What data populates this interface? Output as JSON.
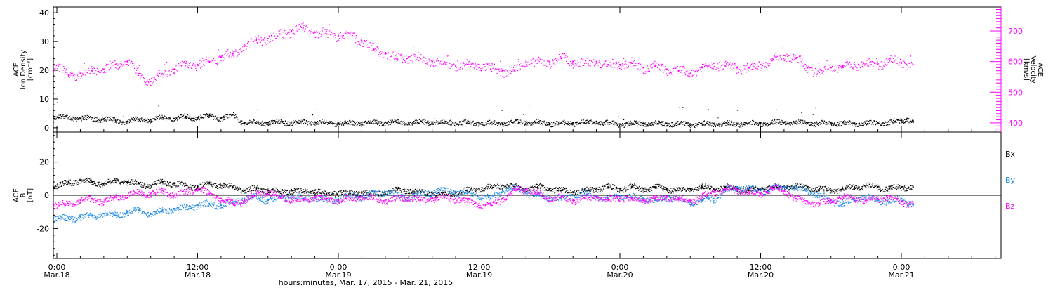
{
  "colors": {
    "density": "#000000",
    "velocity": "#ff00ff",
    "bx": "#000000",
    "by": "#1e88e5",
    "bz": "#ff00ff"
  },
  "x_axis": {
    "title": "hours:minutes, Mar. 17, 2015 - Mar. 21, 2015",
    "ticks": [
      {
        "time": "0:00",
        "date": "Mar.18",
        "hour": 0
      },
      {
        "time": "12:00",
        "date": "Mar.18",
        "hour": 12
      },
      {
        "time": "0:00",
        "date": "Mar.19",
        "hour": 24
      },
      {
        "time": "12:00",
        "date": "Mar.19",
        "hour": 36
      },
      {
        "time": "0:00",
        "date": "Mar.20",
        "hour": 48
      },
      {
        "time": "12:00",
        "date": "Mar.20",
        "hour": 60
      },
      {
        "time": "0:00",
        "date": "Mar.21",
        "hour": 72
      }
    ],
    "range_hours": [
      -0.3,
      80.5
    ]
  },
  "chart_data": [
    {
      "type": "scatter",
      "panel": "top",
      "left_axis": {
        "label_lines": [
          "ACE",
          "Ion Density",
          "[cm⁻³]"
        ],
        "ticks": [
          "0",
          "10",
          "20",
          "30",
          "40"
        ],
        "tick_values": [
          0,
          10,
          20,
          30,
          40
        ],
        "range": [
          -1.5,
          42
        ]
      },
      "right_axis": {
        "label_lines": [
          "ACE",
          "Velocity",
          "[km/s]"
        ],
        "ticks": [
          "400",
          "500",
          "600",
          "700"
        ],
        "tick_values": [
          400,
          500,
          600,
          700
        ],
        "range": [
          370,
          778
        ]
      },
      "series": [
        {
          "key": "density",
          "axis": "left",
          "x": [
            -0.3,
            2,
            4,
            5,
            6,
            7,
            8,
            9,
            10,
            11,
            12,
            13,
            14,
            15,
            15.7,
            16,
            18,
            20,
            22,
            24,
            26,
            28,
            30,
            32,
            34,
            36,
            38,
            40,
            42,
            44,
            46,
            48,
            50,
            52,
            54,
            56,
            58,
            60,
            62,
            64,
            66,
            68,
            70,
            71.5,
            72,
            72.5,
            73
          ],
          "values": [
            4,
            3.3,
            3.1,
            2.6,
            2.2,
            3,
            2.8,
            3.6,
            3.2,
            3.9,
            3.6,
            4.2,
            3.3,
            4.5,
            2.3,
            1.8,
            1.9,
            2,
            2,
            1.6,
            1.8,
            1.9,
            1.8,
            2,
            1.9,
            1.7,
            1.6,
            2.1,
            1.6,
            1.7,
            2.1,
            1.3,
            1.6,
            1.5,
            1.3,
            1.5,
            1.4,
            1.6,
            1.9,
            1.6,
            1.7,
            1.6,
            1.8,
            2.1,
            2.5,
            3.2,
            2.4
          ]
        },
        {
          "key": "velocity",
          "axis": "right",
          "x": [
            -0.3,
            1,
            2,
            3,
            4,
            5,
            6,
            7,
            8,
            9,
            10,
            11,
            12,
            13,
            14,
            15,
            16,
            17,
            18,
            19,
            20,
            21,
            22,
            23,
            24,
            25,
            26,
            27,
            28,
            29,
            30,
            31,
            32,
            33,
            34,
            35,
            36,
            37,
            38,
            39,
            40,
            41,
            42,
            43,
            44,
            45,
            46,
            47,
            48,
            49,
            50,
            51,
            52,
            53,
            54,
            55,
            56,
            57,
            58,
            59,
            60,
            61,
            62,
            63,
            64,
            65,
            66,
            67,
            68,
            69,
            70,
            71,
            72,
            73
          ],
          "values": [
            590,
            555,
            560,
            570,
            575,
            590,
            600,
            560,
            535,
            560,
            575,
            595,
            590,
            600,
            615,
            625,
            650,
            670,
            675,
            690,
            700,
            710,
            695,
            690,
            685,
            690,
            665,
            640,
            625,
            610,
            615,
            610,
            600,
            595,
            585,
            590,
            590,
            575,
            570,
            570,
            600,
            595,
            600,
            610,
            600,
            595,
            600,
            590,
            590,
            595,
            580,
            585,
            575,
            570,
            560,
            580,
            595,
            585,
            580,
            580,
            590,
            605,
            620,
            610,
            580,
            565,
            580,
            585,
            590,
            595,
            590,
            610,
            595,
            590
          ]
        }
      ]
    },
    {
      "type": "scatter",
      "panel": "bottom",
      "left_axis": {
        "label_lines": [
          "ACE",
          "B",
          "[nT]"
        ],
        "ticks": [
          "-20",
          "0",
          "20"
        ],
        "tick_values": [
          -20,
          0,
          20
        ],
        "range": [
          -38,
          38
        ]
      },
      "legend": [
        "Bx",
        "By",
        "Bz"
      ],
      "series": [
        {
          "key": "bx",
          "name": "Bx",
          "x": [
            -0.3,
            1,
            2,
            3,
            4,
            5,
            6,
            7,
            8,
            9,
            10,
            11,
            12,
            13,
            14,
            15,
            16,
            17,
            18,
            19,
            20,
            21,
            22,
            23,
            24,
            25,
            26,
            27,
            28,
            29,
            30,
            31,
            32,
            33,
            34,
            35,
            36,
            37,
            38,
            39,
            40,
            41,
            42,
            43,
            44,
            45,
            46,
            47,
            48,
            49,
            50,
            51,
            52,
            53,
            54,
            55,
            56,
            57,
            58,
            59,
            60,
            61,
            62,
            63,
            64,
            65,
            66,
            67,
            68,
            69,
            70,
            71,
            72,
            73
          ],
          "values": [
            5,
            8,
            9,
            8,
            7,
            9,
            8,
            7,
            6,
            8,
            7,
            6,
            5,
            7,
            6,
            5,
            3,
            4,
            3,
            2,
            3,
            2,
            3,
            1,
            2,
            1,
            2,
            1,
            2,
            3,
            3,
            2,
            1,
            0,
            2,
            3,
            4,
            5,
            6,
            5,
            4,
            5,
            4,
            3,
            2,
            3,
            4,
            5,
            4,
            5,
            4,
            5,
            4,
            3,
            4,
            5,
            4,
            5,
            4,
            3,
            4,
            5,
            5,
            6,
            5,
            4,
            3,
            4,
            5,
            6,
            5,
            4,
            5,
            5
          ]
        },
        {
          "key": "by",
          "name": "By",
          "x": [
            -0.3,
            1,
            2,
            3,
            4,
            5,
            6,
            7,
            8,
            9,
            10,
            11,
            12,
            13,
            14,
            15,
            16,
            17,
            18,
            19,
            20,
            21,
            22,
            23,
            24,
            25,
            26,
            27,
            28,
            29,
            30,
            31,
            32,
            33,
            34,
            35,
            36,
            37,
            38,
            39,
            40,
            41,
            42,
            43,
            44,
            45,
            46,
            47,
            48,
            49,
            50,
            51,
            52,
            53,
            54,
            55,
            56,
            57,
            58,
            59,
            60,
            61,
            62,
            63,
            64,
            65,
            66,
            67,
            68,
            69,
            70,
            71,
            72,
            73
          ],
          "values": [
            -14,
            -14,
            -13,
            -12,
            -11,
            -12,
            -10,
            -9,
            -11,
            -9,
            -8,
            -7,
            -6,
            -5,
            -6,
            -4,
            -2,
            -1,
            -3,
            -1,
            0,
            -2,
            -1,
            -3,
            -2,
            0,
            -1,
            1,
            2,
            0,
            -1,
            1,
            2,
            3,
            2,
            1,
            0,
            -2,
            3,
            4,
            2,
            0,
            -1,
            -2,
            0,
            1,
            -1,
            -2,
            0,
            -1,
            -2,
            -3,
            -1,
            -2,
            -4,
            -3,
            -2,
            3,
            5,
            4,
            3,
            4,
            5,
            4,
            3,
            0,
            -3,
            -5,
            -2,
            -1,
            -3,
            -4,
            -2,
            -6
          ]
        },
        {
          "key": "bz",
          "name": "Bz",
          "x": [
            -0.3,
            1,
            2,
            3,
            4,
            5,
            6,
            7,
            8,
            9,
            10,
            11,
            12,
            13,
            14,
            15,
            16,
            17,
            18,
            19,
            20,
            21,
            22,
            23,
            24,
            25,
            26,
            27,
            28,
            29,
            30,
            31,
            32,
            33,
            34,
            35,
            36,
            37,
            38,
            39,
            40,
            41,
            42,
            43,
            44,
            45,
            46,
            47,
            48,
            49,
            50,
            51,
            52,
            53,
            54,
            55,
            56,
            57,
            58,
            59,
            60,
            61,
            62,
            63,
            64,
            65,
            66,
            67,
            68,
            69,
            70,
            71,
            72,
            73
          ],
          "values": [
            -6,
            -5,
            -3,
            -2,
            -4,
            -1,
            0,
            2,
            1,
            3,
            0,
            2,
            4,
            1,
            -2,
            -5,
            -3,
            1,
            2,
            -1,
            -2,
            -3,
            -1,
            -2,
            -3,
            -2,
            -1,
            -2,
            -3,
            -2,
            -1,
            -3,
            -2,
            -1,
            -2,
            -4,
            -5,
            -6,
            -2,
            3,
            4,
            1,
            -2,
            -1,
            -3,
            -2,
            -1,
            -3,
            -1,
            -2,
            -3,
            -2,
            -1,
            -2,
            -3,
            -1,
            2,
            4,
            3,
            2,
            1,
            4,
            3,
            -2,
            -4,
            -5,
            -3,
            -1,
            -2,
            -3,
            -2,
            -1,
            -4,
            -5
          ]
        }
      ]
    }
  ]
}
